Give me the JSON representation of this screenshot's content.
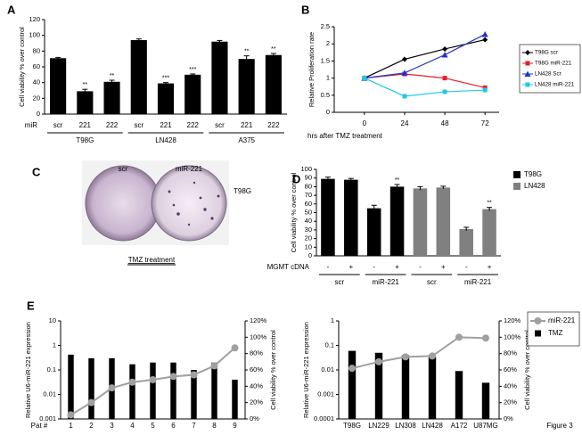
{
  "figure_label": "Figure 3",
  "panel_c": {
    "label": "C",
    "columns": [
      "scr",
      "miR-221"
    ],
    "row_label": "T98G",
    "caption": "TMZ treatment"
  },
  "chart_data": [
    {
      "type": "bar",
      "panel": "A",
      "ylabel": "Cell viability % over control",
      "x_label": "miR",
      "ylim": [
        0,
        120
      ],
      "yticks": [
        0,
        20,
        40,
        60,
        80,
        100,
        120
      ],
      "series": [
        {
          "color": "#000000",
          "groups": [
            {
              "name": "T98G",
              "categories": [
                "scr",
                "221",
                "222"
              ],
              "values": [
                71,
                29,
                41
              ],
              "errors": [
                1,
                2.5,
                2
              ],
              "significance": [
                null,
                "**",
                "**"
              ]
            },
            {
              "name": "LN428",
              "categories": [
                "scr",
                "221",
                "222"
              ],
              "values": [
                94,
                39,
                50
              ],
              "errors": [
                1.5,
                1,
                1
              ],
              "significance": [
                null,
                "***",
                "***"
              ]
            },
            {
              "name": "A375",
              "categories": [
                "scr",
                "221",
                "222"
              ],
              "values": [
                92,
                70,
                75
              ],
              "errors": [
                1.5,
                4,
                2
              ],
              "significance": [
                null,
                "**",
                "**"
              ]
            }
          ]
        }
      ]
    },
    {
      "type": "line",
      "panel": "B",
      "ylabel": "Relative Proliferation rate",
      "x_label": "hrs after TMZ treatment",
      "categories": [
        "0",
        "24",
        "48",
        "72"
      ],
      "ylim": [
        0,
        2.5
      ],
      "yticks": [
        0,
        0.5,
        1,
        1.5,
        2,
        2.5
      ],
      "series": [
        {
          "name": "T98G scr",
          "color": "#000000",
          "marker": "diamond",
          "values": [
            1,
            1.55,
            1.85,
            2.12
          ]
        },
        {
          "name": "T98G miR-221",
          "color": "#e8202a",
          "marker": "square",
          "values": [
            1,
            1.12,
            1.0,
            0.72
          ]
        },
        {
          "name": "LN428 Scr",
          "color": "#2233cc",
          "marker": "triangle",
          "values": [
            1,
            1.15,
            1.68,
            2.28
          ]
        },
        {
          "name": "LN428 miR-221",
          "color": "#22c8e8",
          "marker": "square",
          "values": [
            1,
            0.47,
            0.6,
            0.65
          ]
        }
      ]
    },
    {
      "type": "bar",
      "panel": "D",
      "ylabel": "Cell viability % over control",
      "x_label": "MGMT cDNA",
      "ylim": [
        0,
        100
      ],
      "yticks": [
        0,
        10,
        20,
        30,
        40,
        50,
        60,
        70,
        80,
        90,
        100
      ],
      "series": [
        {
          "name": "T98G",
          "color": "#000000",
          "groups": [
            {
              "name": "scr",
              "categories": [
                "-",
                "+"
              ],
              "values": [
                89,
                88
              ],
              "errors": [
                2,
                1.5
              ],
              "significance": [
                null,
                null
              ]
            },
            {
              "name": "miR-221",
              "categories": [
                "-",
                "+"
              ],
              "values": [
                55,
                80
              ],
              "errors": [
                3.5,
                2.5
              ],
              "significance": [
                null,
                "**"
              ]
            }
          ]
        },
        {
          "name": "LN428",
          "color": "#808080",
          "groups": [
            {
              "name": "scr",
              "categories": [
                "-",
                "+"
              ],
              "values": [
                78,
                79
              ],
              "errors": [
                2,
                1.5
              ],
              "significance": [
                null,
                null
              ]
            },
            {
              "name": "miR-221",
              "categories": [
                "-",
                "+"
              ],
              "values": [
                31,
                54
              ],
              "errors": [
                2,
                2
              ],
              "significance": [
                null,
                "**"
              ]
            }
          ]
        }
      ]
    },
    {
      "type": "bar-line",
      "panel": "E",
      "ylabel": "Relative U6-miR-221 expression",
      "y2label": "Cell viability % over control",
      "x_label": "Pat #",
      "categories": [
        "1",
        "2",
        "3",
        "4",
        "5",
        "6",
        "7",
        "8",
        "9"
      ],
      "log_y": true,
      "ylim": [
        0.001,
        10
      ],
      "yticks": [
        0.001,
        0.01,
        0.1,
        1,
        10
      ],
      "y2lim": [
        0,
        120
      ],
      "y2ticks": [
        {
          "value": 0,
          "label": "0%"
        },
        {
          "value": 20,
          "label": "20%"
        },
        {
          "value": 40,
          "label": "40%"
        },
        {
          "value": 60,
          "label": "60%"
        },
        {
          "value": 80,
          "label": "80%"
        },
        {
          "value": 100,
          "label": "100%"
        },
        {
          "value": 120,
          "label": "120%"
        }
      ],
      "series": [
        {
          "mark": "line",
          "axis": "y2",
          "color": "#a0a0a0",
          "values": [
            5,
            20,
            38,
            45,
            48,
            52,
            54,
            65,
            87
          ]
        },
        {
          "mark": "bar",
          "color": "#000000",
          "values": [
            0.42,
            0.3,
            0.3,
            0.17,
            0.2,
            0.2,
            0.1,
            0.2,
            0.04
          ]
        }
      ]
    },
    {
      "type": "bar-line",
      "ylabel": "Relative U6-miR-221 expression",
      "y2label": "Cell viability % over control",
      "categories": [
        "T98G",
        "LN229",
        "LN308",
        "LN428",
        "A172",
        "U87MG"
      ],
      "log_y": true,
      "ylim": [
        0.0001,
        1
      ],
      "yticks": [
        0.0001,
        0.001,
        0.01,
        0.1,
        1
      ],
      "y2lim": [
        0,
        120
      ],
      "y2ticks": [
        {
          "value": 0,
          "label": "0%"
        },
        {
          "value": 20,
          "label": "20%"
        },
        {
          "value": 40,
          "label": "40%"
        },
        {
          "value": 60,
          "label": "60%"
        },
        {
          "value": 80,
          "label": "80%"
        },
        {
          "value": 100,
          "label": "100%"
        },
        {
          "value": 120,
          "label": "120%"
        }
      ],
      "series": [
        {
          "name": "miR-221",
          "mark": "line",
          "axis": "y2",
          "color": "#a0a0a0",
          "values": [
            62,
            70,
            76,
            77,
            100,
            99
          ]
        },
        {
          "name": "TMZ",
          "mark": "bar",
          "color": "#000000",
          "values": [
            0.06,
            0.05,
            0.04,
            0.035,
            0.009,
            0.003
          ]
        }
      ]
    }
  ]
}
